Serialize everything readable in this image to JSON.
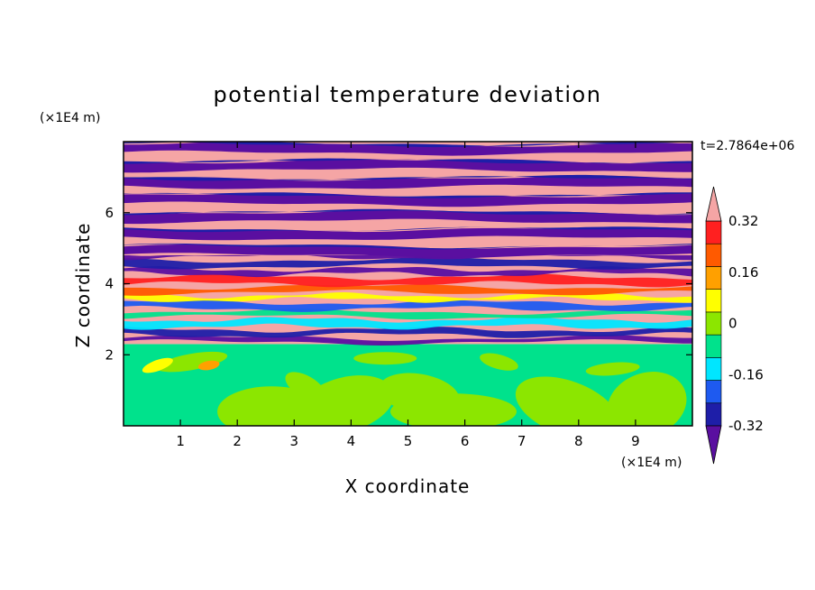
{
  "chart_data": {
    "type": "heatmap",
    "title": "potential temperature deviation",
    "xlabel": "X coordinate",
    "ylabel": "Z coordinate",
    "x_unit": "(×1E4 m)",
    "y_unit": "(×1E4 m)",
    "time_label": "t=2.7864e+06",
    "xlim": [
      0,
      10
    ],
    "ylim": [
      0,
      8
    ],
    "x_ticks": [
      1,
      2,
      3,
      4,
      5,
      6,
      7,
      8,
      9
    ],
    "y_ticks": [
      2,
      4,
      6
    ],
    "x_tick_labels": [
      "1",
      "2",
      "3",
      "4",
      "5",
      "6",
      "7",
      "8",
      "9"
    ],
    "y_tick_labels": [
      "2",
      "4",
      "6"
    ],
    "colorbar": {
      "levels": [
        -0.4,
        -0.32,
        -0.24,
        -0.16,
        -0.08,
        0,
        0.08,
        0.16,
        0.24,
        0.32,
        0.4
      ],
      "labeled_levels": [
        "0.32",
        "0.16",
        "0",
        "-0.16",
        "-0.32"
      ],
      "labeled_values": [
        0.32,
        0.16,
        0,
        -0.16,
        -0.32
      ],
      "colors": [
        "#5a0fa0",
        "#1e1ea8",
        "#1e5af0",
        "#00e6ff",
        "#00e28c",
        "#8ce600",
        "#ffff00",
        "#ffa000",
        "#ff5a00",
        "#ff2020",
        "#f5a5a5"
      ],
      "over_color": "#f5a5a5",
      "under_color": "#5a0fa0",
      "extend": "both"
    },
    "regions": [
      {
        "description": "z 0 to 2.3: near-neutral layer",
        "value_range": [
          -0.08,
          0.08
        ],
        "dominant_colors": [
          "#00e28c",
          "#8ce600"
        ]
      },
      {
        "description": "z 2.3 to 4.8: turbulent mixing layer",
        "value_range": [
          -0.4,
          0.4
        ]
      },
      {
        "description": "z 4.8 to 8: alternating stratified bands",
        "values": [
          -0.4,
          0.4
        ],
        "dominant_colors": [
          "#5a0fa0",
          "#f5a5a5"
        ]
      }
    ]
  }
}
